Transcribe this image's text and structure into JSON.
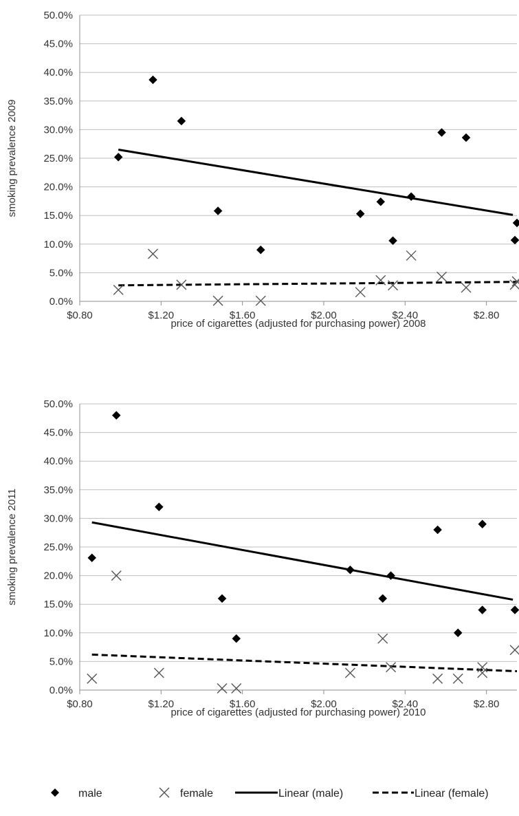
{
  "chart_data": [
    {
      "type": "scatter",
      "xlabel": "price of cigarettes (adjusted for purchasing power) 2008",
      "ylabel": "smoking prevalence  2009",
      "xlim": [
        0.8,
        2.95
      ],
      "ylim": [
        0,
        50
      ],
      "x_ticks": [
        "$0.80",
        "$1.20",
        "$1.60",
        "$2.00",
        "$2.40",
        "$2.80"
      ],
      "y_ticks": [
        "0.0%",
        "5.0%",
        "10.0%",
        "15.0%",
        "20.0%",
        "25.0%",
        "30.0%",
        "35.0%",
        "40.0%",
        "45.0%",
        "50.0%"
      ],
      "grid": "horizontal",
      "series": [
        {
          "name": "male",
          "marker": "diamond",
          "color": "#000000",
          "points": [
            [
              0.99,
              25.2
            ],
            [
              1.16,
              38.7
            ],
            [
              1.3,
              31.5
            ],
            [
              1.48,
              15.8
            ],
            [
              1.69,
              9.0
            ],
            [
              2.18,
              15.3
            ],
            [
              2.28,
              17.4
            ],
            [
              2.34,
              10.6
            ],
            [
              2.43,
              18.3
            ],
            [
              2.58,
              29.5
            ],
            [
              2.7,
              28.6
            ],
            [
              2.95,
              13.7
            ],
            [
              2.94,
              10.7
            ]
          ]
        },
        {
          "name": "female",
          "marker": "x",
          "color": "#555555",
          "points": [
            [
              0.99,
              2.0
            ],
            [
              1.16,
              8.3
            ],
            [
              1.3,
              2.9
            ],
            [
              1.48,
              0.1
            ],
            [
              1.69,
              0.1
            ],
            [
              2.18,
              1.6
            ],
            [
              2.28,
              3.7
            ],
            [
              2.34,
              2.8
            ],
            [
              2.43,
              8.0
            ],
            [
              2.58,
              4.3
            ],
            [
              2.7,
              2.4
            ],
            [
              2.95,
              3.5
            ],
            [
              2.94,
              2.9
            ]
          ]
        }
      ],
      "trendlines": [
        {
          "name": "Linear (male)",
          "style": "solid",
          "x": [
            0.99,
            2.93
          ],
          "y": [
            26.5,
            15.1
          ]
        },
        {
          "name": "Linear (female)",
          "style": "dashed",
          "x": [
            0.99,
            2.95
          ],
          "y": [
            2.8,
            3.4
          ]
        }
      ]
    },
    {
      "type": "scatter",
      "xlabel": "price of cigarettes (adjusted for purchasing power) 2010",
      "ylabel": "smoking prevalence  2011",
      "xlim": [
        0.8,
        2.95
      ],
      "ylim": [
        0,
        50
      ],
      "x_ticks": [
        "$0.80",
        "$1.20",
        "$1.60",
        "$2.00",
        "$2.40",
        "$2.80"
      ],
      "y_ticks": [
        "0.0%",
        "5.0%",
        "10.0%",
        "15.0%",
        "20.0%",
        "25.0%",
        "30.0%",
        "35.0%",
        "40.0%",
        "45.0%",
        "50.0%"
      ],
      "grid": "horizontal",
      "series": [
        {
          "name": "male",
          "marker": "diamond",
          "color": "#000000",
          "points": [
            [
              0.86,
              23.1
            ],
            [
              0.98,
              48.0
            ],
            [
              1.19,
              32.0
            ],
            [
              1.5,
              16.0
            ],
            [
              1.57,
              9.0
            ],
            [
              2.13,
              21.0
            ],
            [
              2.29,
              16.0
            ],
            [
              2.33,
              20.0
            ],
            [
              2.56,
              28.0
            ],
            [
              2.66,
              10.0
            ],
            [
              2.78,
              29.0
            ],
            [
              2.78,
              14.0
            ],
            [
              2.94,
              14.0
            ]
          ]
        },
        {
          "name": "female",
          "marker": "x",
          "color": "#555555",
          "points": [
            [
              0.86,
              2.0
            ],
            [
              0.98,
              20.0
            ],
            [
              1.19,
              3.0
            ],
            [
              1.5,
              0.3
            ],
            [
              1.57,
              0.3
            ],
            [
              2.13,
              3.0
            ],
            [
              2.29,
              9.0
            ],
            [
              2.33,
              4.0
            ],
            [
              2.56,
              2.0
            ],
            [
              2.66,
              2.0
            ],
            [
              2.78,
              4.0
            ],
            [
              2.78,
              3.0
            ],
            [
              2.94,
              7.0
            ]
          ]
        }
      ],
      "trendlines": [
        {
          "name": "Linear (male)",
          "style": "solid",
          "x": [
            0.86,
            2.93
          ],
          "y": [
            29.3,
            15.8
          ]
        },
        {
          "name": "Linear (female)",
          "style": "dashed",
          "x": [
            0.86,
            2.95
          ],
          "y": [
            6.2,
            3.3
          ]
        }
      ]
    }
  ],
  "legend": [
    {
      "label": "male",
      "marker": "diamond"
    },
    {
      "label": "female",
      "marker": "x"
    },
    {
      "label": "Linear (male)",
      "marker": "solid-line"
    },
    {
      "label": "Linear (female)",
      "marker": "dashed-line"
    }
  ]
}
